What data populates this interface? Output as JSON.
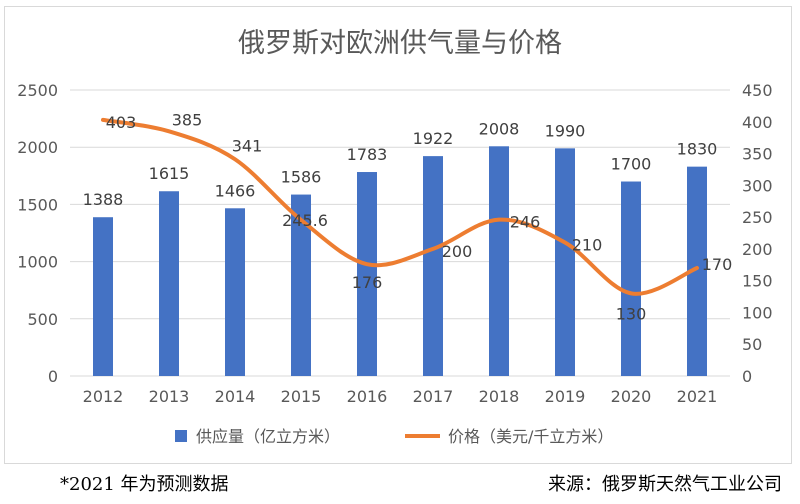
{
  "colors": {
    "bar": "#4472c4",
    "line": "#ed7d31",
    "grid": "#d9d9d9",
    "text": "#595959"
  },
  "footnote_left": "*2021 年为预测数据",
  "footnote_right": "来源：俄罗斯天然气工业公司",
  "chart_data": {
    "type": "bar",
    "title": "俄罗斯对欧洲供气量与价格",
    "categories": [
      "2012",
      "2013",
      "2014",
      "2015",
      "2016",
      "2017",
      "2018",
      "2019",
      "2020",
      "2021"
    ],
    "y_left": {
      "ylim": [
        0,
        2500
      ],
      "ticks": [
        0,
        500,
        1000,
        1500,
        2000,
        2500
      ]
    },
    "y_right": {
      "ylim": [
        0,
        450
      ],
      "ticks": [
        0,
        50,
        100,
        150,
        200,
        250,
        300,
        350,
        400,
        450
      ]
    },
    "grid": true,
    "legend": "bottom",
    "series": [
      {
        "name": "供应量（亿立方米）",
        "type": "bar",
        "axis": "left",
        "values": [
          1388,
          1615,
          1466,
          1586,
          1783,
          1922,
          2008,
          1990,
          1700,
          1830
        ],
        "labels": [
          "1388",
          "1615",
          "1466",
          "1586",
          "1783",
          "1922",
          "2008",
          "1990",
          "1700",
          "1830"
        ]
      },
      {
        "name": "价格（美元/千立方米）",
        "type": "line",
        "axis": "right",
        "values": [
          403,
          385,
          341,
          245.6,
          176,
          200,
          246,
          210,
          130,
          170
        ],
        "labels": [
          "403",
          "385",
          "341",
          "245.6",
          "176",
          "200",
          "246",
          "210",
          "130",
          "170"
        ]
      }
    ]
  }
}
